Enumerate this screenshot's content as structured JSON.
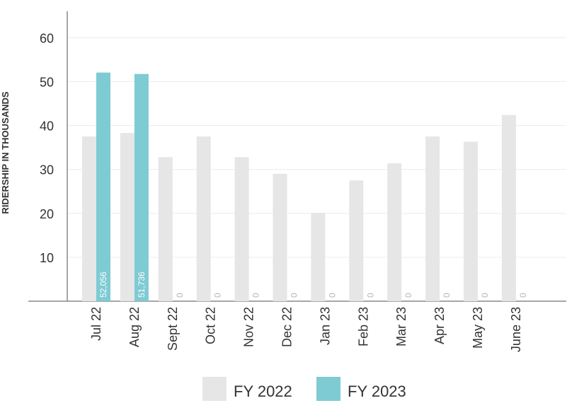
{
  "chart_data": {
    "type": "bar",
    "categories": [
      "Jul 22",
      "Aug 22",
      "Sept 22",
      "Oct 22",
      "Nov 22",
      "Dec 22",
      "Jan 23",
      "Feb 23",
      "Mar 23",
      "Apr 23",
      "May 23",
      "June 23"
    ],
    "series": [
      {
        "name": "FY 2022",
        "color": "#e6e6e6",
        "values": [
          37.5,
          38.3,
          32.8,
          37.5,
          32.8,
          29.0,
          20.1,
          27.5,
          31.4,
          37.5,
          36.3,
          42.4
        ]
      },
      {
        "name": "FY 2023",
        "color": "#7ecbd3",
        "values": [
          52.056,
          51.736,
          0,
          0,
          0,
          0,
          0,
          0,
          0,
          0,
          0,
          0
        ],
        "labels": [
          "52,056",
          "51,736",
          "0",
          "0",
          "0",
          "0",
          "0",
          "0",
          "0",
          "0",
          "0",
          "0"
        ]
      }
    ],
    "title": "",
    "xlabel": "",
    "ylabel": "RIDERSHIP IN THOUSANDS",
    "ylim": [
      0,
      66
    ],
    "yticks": [
      "10",
      "20",
      "30",
      "40",
      "50",
      "60"
    ],
    "ytick_values": [
      10,
      20,
      30,
      40,
      50,
      60
    ],
    "grid": true,
    "legend_position": "bottom-center"
  }
}
